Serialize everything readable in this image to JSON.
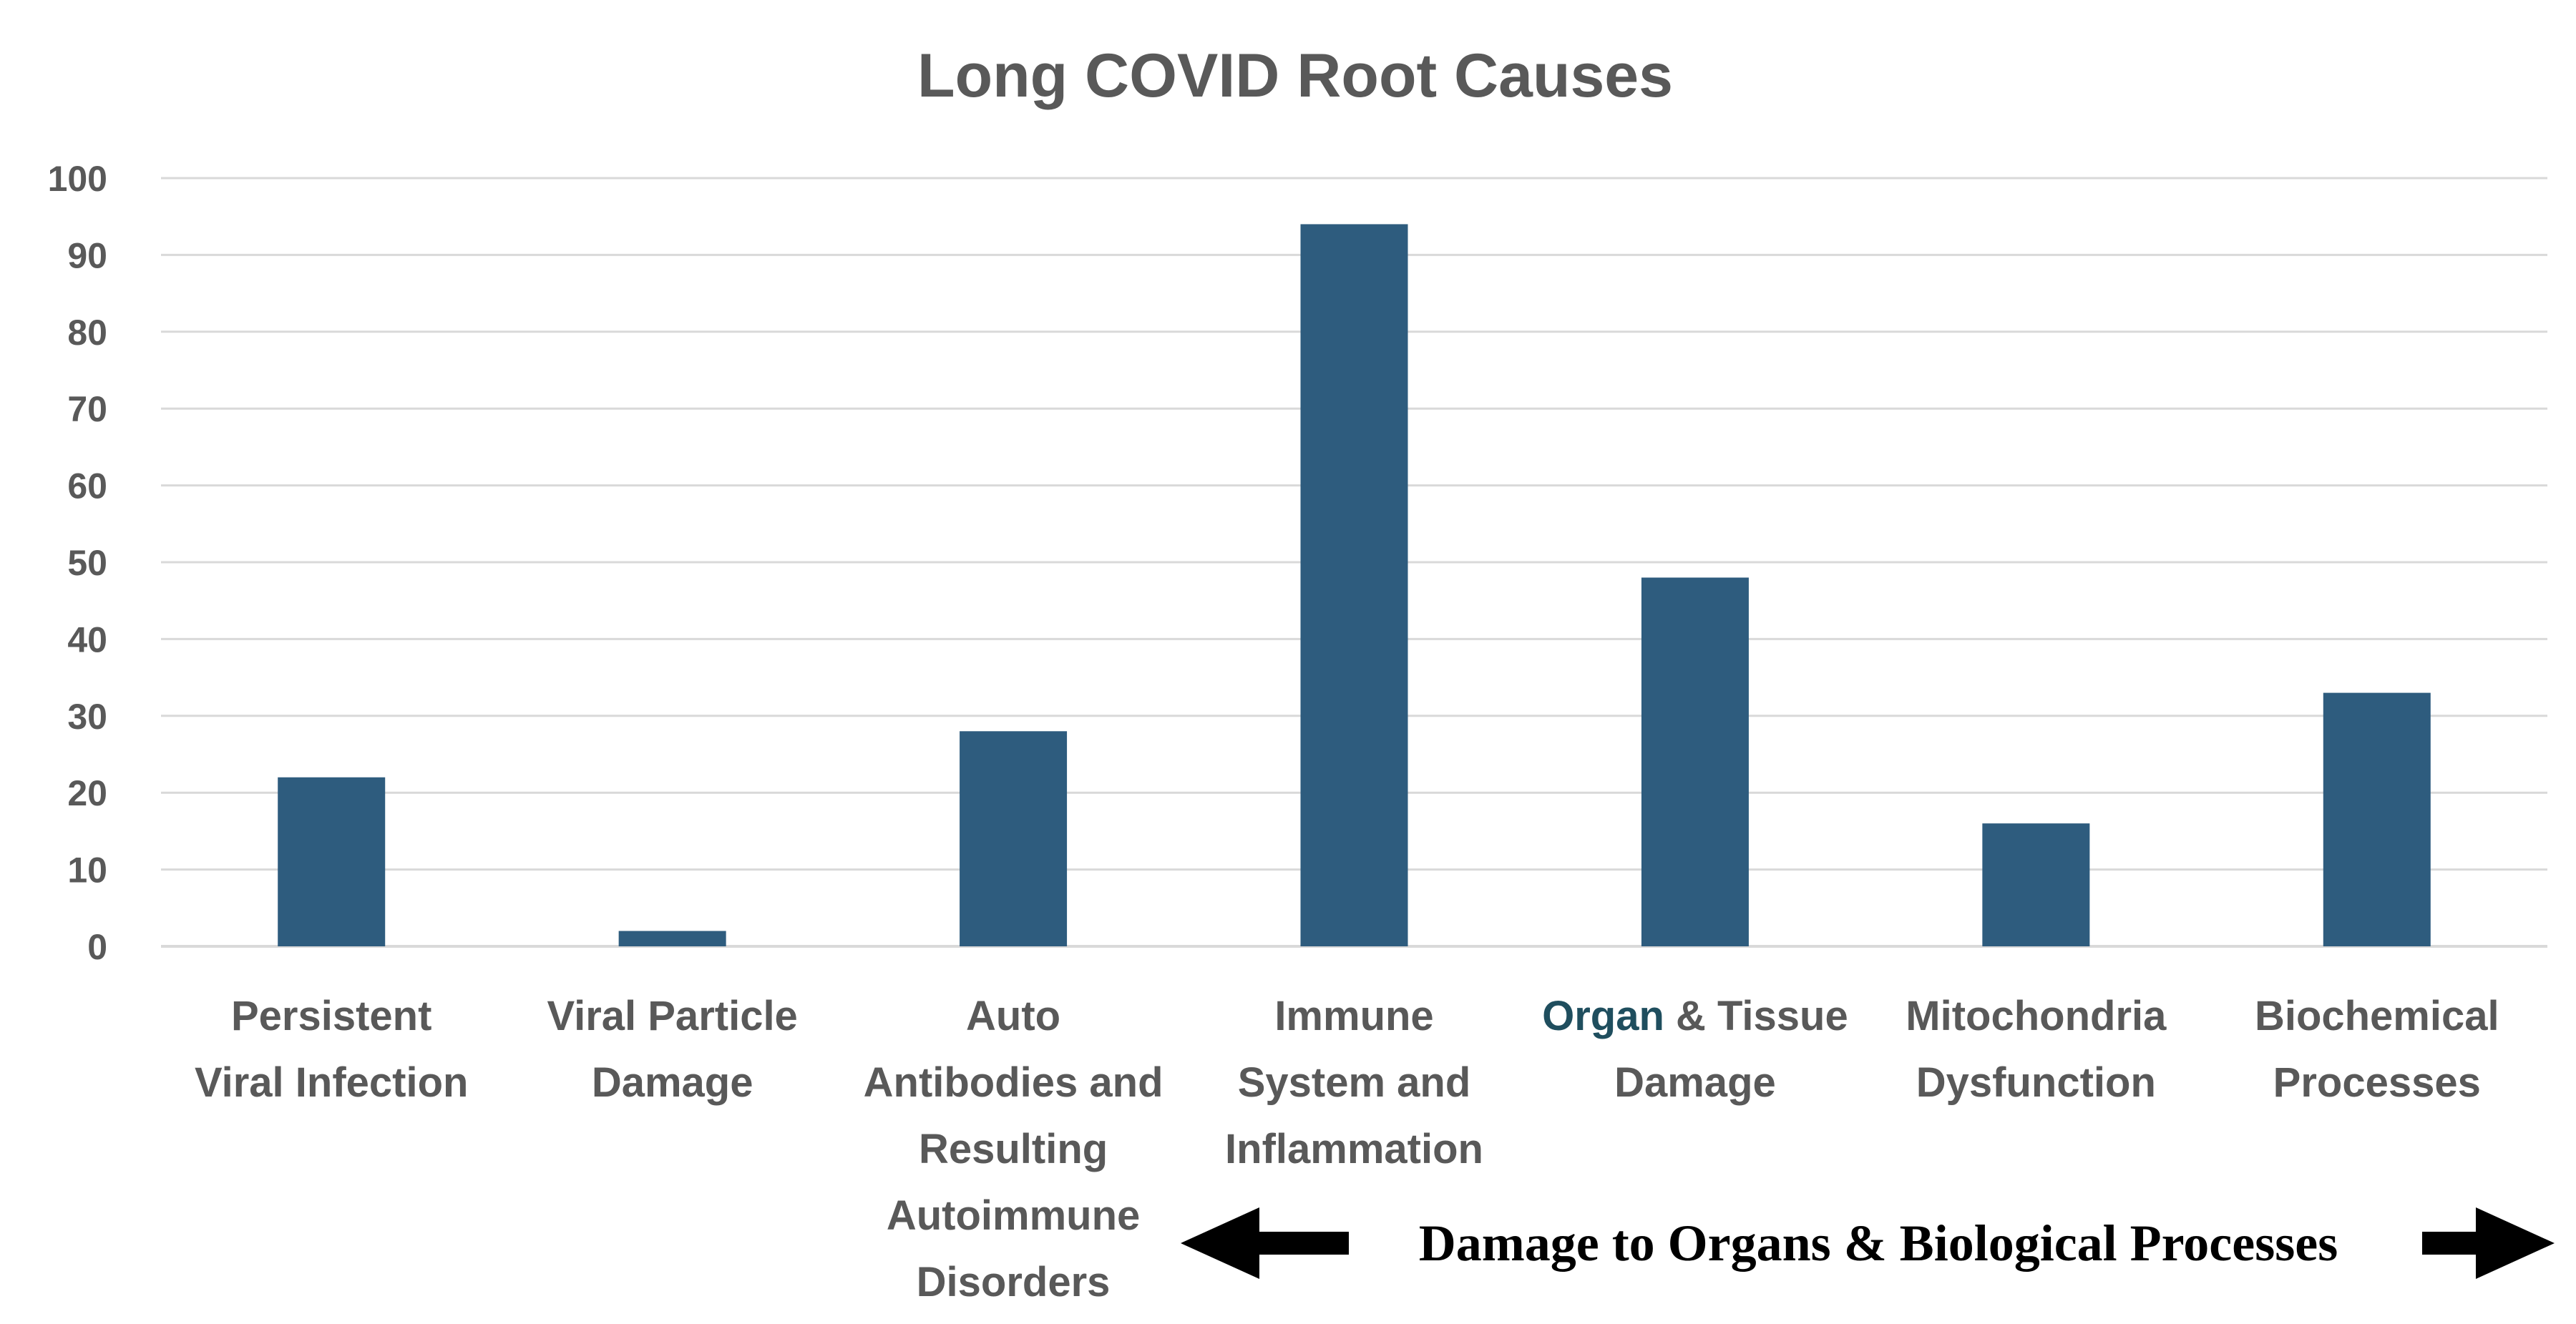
{
  "chart_data": {
    "type": "bar",
    "title": "Long COVID Root Causes",
    "xlabel": "",
    "ylabel": "",
    "ylim": [
      0,
      100
    ],
    "yticks": [
      0,
      10,
      20,
      30,
      40,
      50,
      60,
      70,
      80,
      90,
      100
    ],
    "grid": true,
    "legend": "none",
    "bar_color": "#2e5c7e",
    "categories": [
      "Persistent Viral Infection",
      "Viral Particle Damage",
      "Auto Antibodies and Resulting Autoimmune Disorders",
      "Immune System and Inflammation",
      "Organ & Tissue Damage",
      "Mitochondria Dysfunction",
      "Biochemical Processes"
    ],
    "category_lines": [
      [
        "Persistent",
        "Viral Infection"
      ],
      [
        "Viral Particle",
        "Damage"
      ],
      [
        "Auto",
        "Antibodies and",
        "Resulting",
        "Autoimmune",
        "Disorders"
      ],
      [
        "Immune",
        "System and",
        "Inflammation"
      ],
      [
        "Organ & Tissue",
        "Damage"
      ],
      [
        "Mitochondria",
        "Dysfunction"
      ],
      [
        "Biochemical",
        "Processes"
      ]
    ],
    "values": [
      22,
      2,
      28,
      94,
      48,
      16,
      33
    ],
    "annotations": [
      {
        "text": "Damage to Organs & Biological Processes",
        "arrow": "both",
        "span_categories": [
          "Immune System and Inflammation",
          "Biochemical Processes"
        ]
      }
    ]
  }
}
